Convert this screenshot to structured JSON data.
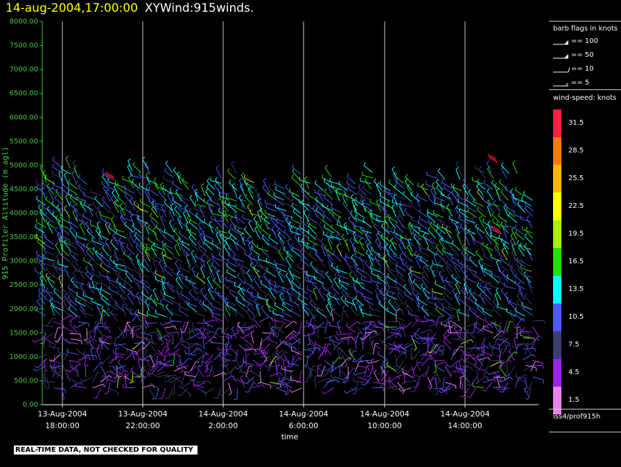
{
  "header": {
    "datetime": "14-aug-2004,17:00:00",
    "title": "XYWind:915winds."
  },
  "chart_data": {
    "type": "wind-barb",
    "ylabel": "915 Profiler Altitude (m agl)",
    "xlabel": "time",
    "ylim": [
      0,
      8000
    ],
    "y_ticks": [
      "0.00",
      "500.00",
      "1000.00",
      "1500.00",
      "2000.00",
      "2500.00",
      "3000.00",
      "3500.00",
      "4000.00",
      "4500.00",
      "5000.00",
      "5500.00",
      "6000.00",
      "6500.00",
      "7000.00",
      "7500.00",
      "8000.00"
    ],
    "x_ticks": [
      {
        "date": "13-Aug-2004",
        "time": "18:00:00"
      },
      {
        "date": "13-Aug-2004",
        "time": "22:00:00"
      },
      {
        "date": "14-Aug-2004",
        "time": "2:00:00"
      },
      {
        "date": "14-Aug-2004",
        "time": "6:00:00"
      },
      {
        "date": "14-Aug-2004",
        "time": "10:00:00"
      },
      {
        "date": "14-Aug-2004",
        "time": "14:00:00"
      }
    ],
    "vertical_gridlines": true,
    "barb_data_approx": "dense field of wind barbs from ~300 m to ~5000 m; mostly 4.5-13.5 knots with scattered 16.5-31.5 knot barbs near 4800-5200 m"
  },
  "legend": {
    "barb_title": "barb flags in knots",
    "barbs": [
      {
        "label": "== 100"
      },
      {
        "label": "== 50"
      },
      {
        "label": "== 10"
      },
      {
        "label": "== 5"
      }
    ],
    "speed_title": "wind-speed: knots",
    "scale": [
      {
        "label": "31.5",
        "color": "#ff1f3c"
      },
      {
        "label": "28.5",
        "color": "#ff7a00"
      },
      {
        "label": "25.5",
        "color": "#ffb700"
      },
      {
        "label": "22.5",
        "color": "#ffff00"
      },
      {
        "label": "19.5",
        "color": "#a8f000"
      },
      {
        "label": "16.5",
        "color": "#22e000"
      },
      {
        "label": "13.5",
        "color": "#00ffff"
      },
      {
        "label": "10.5",
        "color": "#4a5cff"
      },
      {
        "label": "7.5",
        "color": "#3a3e70"
      },
      {
        "label": "4.5",
        "color": "#a020f0"
      },
      {
        "label": "1.5",
        "color": "#ee82ee"
      }
    ]
  },
  "station": "iss4/prof915h",
  "quality_note": "REAL-TIME DATA, NOT CHECKED FOR QUALITY",
  "colors": {
    "axis": "#40d040",
    "grid": "#d0d0d0",
    "background": "#000000"
  }
}
